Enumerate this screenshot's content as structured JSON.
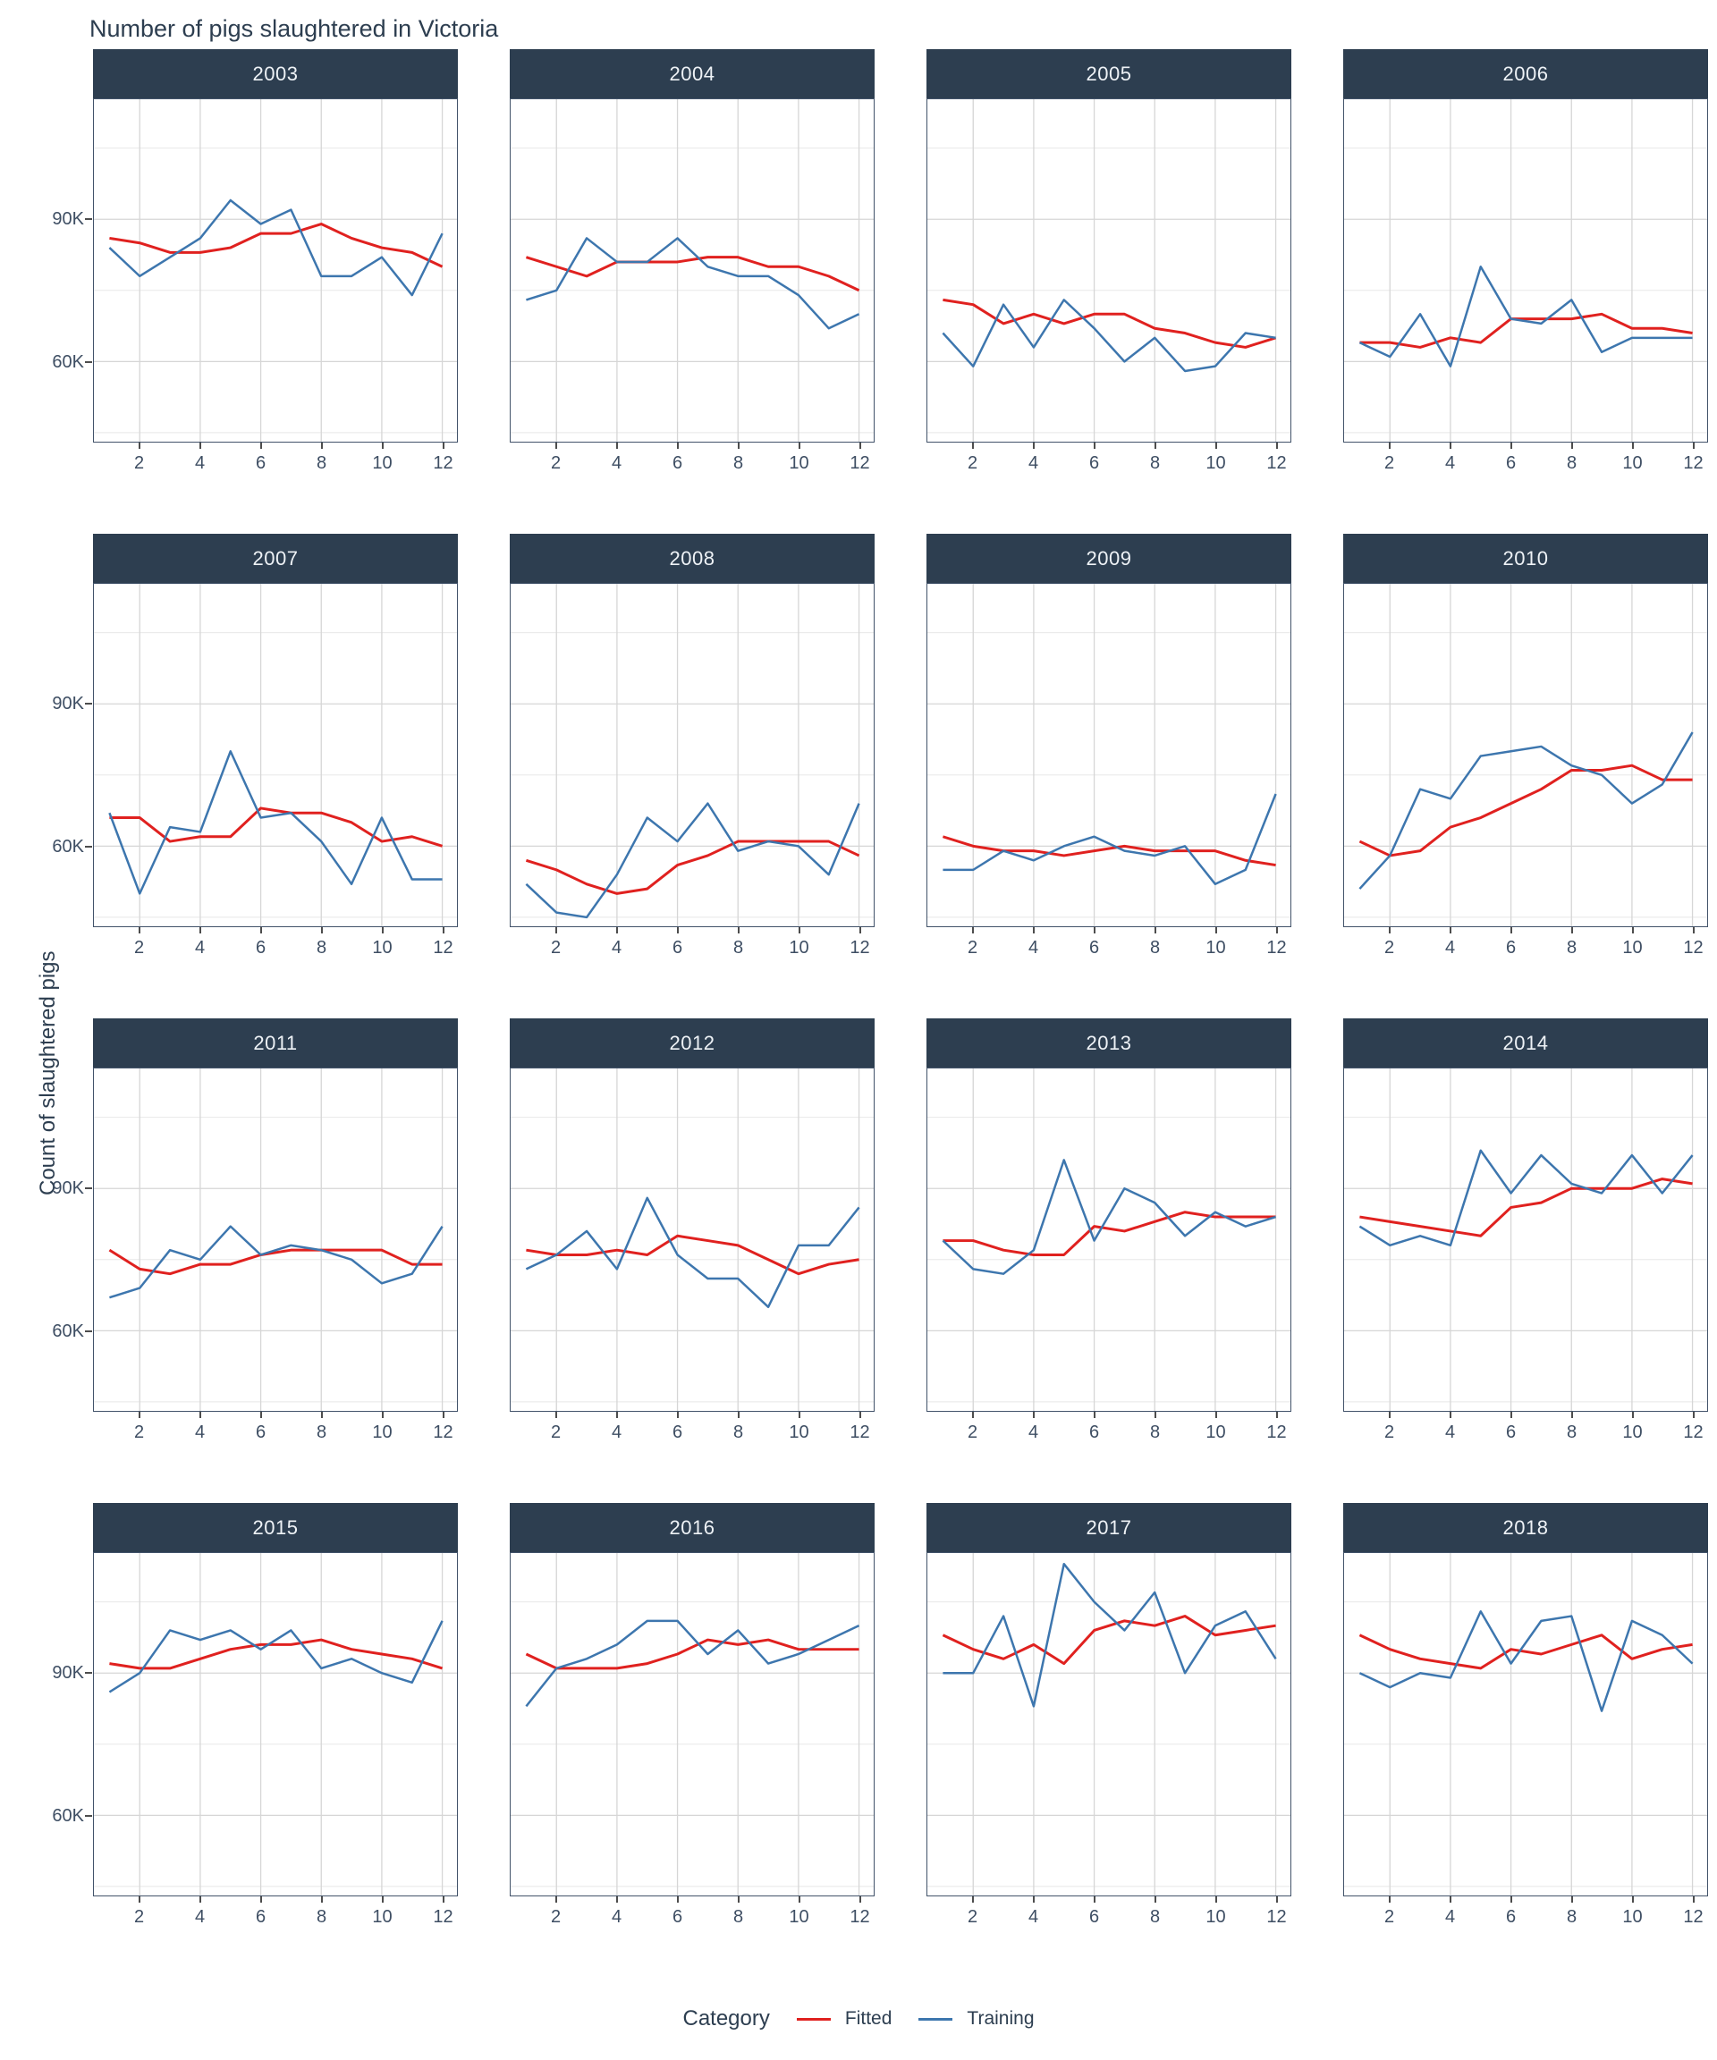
{
  "title": "Number of pigs slaughtered in Victoria",
  "ylabel": "Count of slaughtered pigs",
  "legend": {
    "title": "Category",
    "items": [
      {
        "label": "Fitted",
        "color": "#e0211f"
      },
      {
        "label": "Training",
        "color": "#3d76ae"
      }
    ]
  },
  "colors": {
    "title_text": "#2d3e50",
    "axis_text": "#3e4e63",
    "strip_bg": "#2d3e50",
    "strip_text": "#eef2f6",
    "panel_border": "#42536a",
    "grid_major": "#d6d6d6",
    "grid_minor": "#e8e8e8",
    "tick_mark": "#4d4d4d",
    "fitted": "#e0211f",
    "training": "#3d76ae"
  },
  "chart_data": {
    "type": "line",
    "title": "Number of pigs slaughtered in Victoria",
    "ylabel": "Count of slaughtered pigs",
    "xlabel": "",
    "values_in": "thousands",
    "x": [
      1,
      2,
      3,
      4,
      5,
      6,
      7,
      8,
      9,
      10,
      11,
      12
    ],
    "x_ticks": [
      2,
      4,
      6,
      8,
      10,
      12
    ],
    "y_major_ticks": [
      {
        "value": 90,
        "label": "90K"
      },
      {
        "value": 60,
        "label": "60K"
      }
    ],
    "y_minor_ticks": [
      45,
      75,
      105
    ],
    "ylim": [
      43.1,
      115.3
    ],
    "grid": true,
    "legend_position": "bottom",
    "series_names": [
      "Fitted",
      "Training"
    ],
    "facets": [
      {
        "year": "2003",
        "fitted": [
          86,
          85,
          83,
          83,
          84,
          87,
          87,
          89,
          86,
          84,
          83,
          80
        ],
        "training": [
          84,
          78,
          82,
          86,
          94,
          89,
          92,
          78,
          78,
          82,
          74,
          87
        ]
      },
      {
        "year": "2004",
        "fitted": [
          82,
          80,
          78,
          81,
          81,
          81,
          82,
          82,
          80,
          80,
          78,
          75
        ],
        "training": [
          73,
          75,
          86,
          81,
          81,
          86,
          80,
          78,
          78,
          74,
          67,
          70
        ]
      },
      {
        "year": "2005",
        "fitted": [
          73,
          72,
          68,
          70,
          68,
          70,
          70,
          67,
          66,
          64,
          63,
          65
        ],
        "training": [
          66,
          59,
          72,
          63,
          73,
          67,
          60,
          65,
          58,
          59,
          66,
          65
        ]
      },
      {
        "year": "2006",
        "fitted": [
          64,
          64,
          63,
          65,
          64,
          69,
          69,
          69,
          70,
          67,
          67,
          66
        ],
        "training": [
          64,
          61,
          70,
          59,
          80,
          69,
          68,
          73,
          62,
          65,
          65,
          65
        ]
      },
      {
        "year": "2007",
        "fitted": [
          66,
          66,
          61,
          62,
          62,
          68,
          67,
          67,
          65,
          61,
          62,
          60
        ],
        "training": [
          67,
          50,
          64,
          63,
          80,
          66,
          67,
          61,
          52,
          66,
          53,
          53
        ]
      },
      {
        "year": "2008",
        "fitted": [
          57,
          55,
          52,
          50,
          51,
          56,
          58,
          61,
          61,
          61,
          61,
          58
        ],
        "training": [
          52,
          46,
          45,
          54,
          66,
          61,
          69,
          59,
          61,
          60,
          54,
          69
        ]
      },
      {
        "year": "2009",
        "fitted": [
          62,
          60,
          59,
          59,
          58,
          59,
          60,
          59,
          59,
          59,
          57,
          56
        ],
        "training": [
          55,
          55,
          59,
          57,
          60,
          62,
          59,
          58,
          60,
          52,
          55,
          71
        ]
      },
      {
        "year": "2010",
        "fitted": [
          61,
          58,
          59,
          64,
          66,
          69,
          72,
          76,
          76,
          77,
          74,
          74
        ],
        "training": [
          51,
          58,
          72,
          70,
          79,
          80,
          81,
          77,
          75,
          69,
          73,
          84
        ]
      },
      {
        "year": "2011",
        "fitted": [
          77,
          73,
          72,
          74,
          74,
          76,
          77,
          77,
          77,
          77,
          74,
          74
        ],
        "training": [
          67,
          69,
          77,
          75,
          82,
          76,
          78,
          77,
          75,
          70,
          72,
          82
        ]
      },
      {
        "year": "2012",
        "fitted": [
          77,
          76,
          76,
          77,
          76,
          80,
          79,
          78,
          75,
          72,
          74,
          75
        ],
        "training": [
          73,
          76,
          81,
          73,
          88,
          76,
          71,
          71,
          65,
          78,
          78,
          86
        ]
      },
      {
        "year": "2013",
        "fitted": [
          79,
          79,
          77,
          76,
          76,
          82,
          81,
          83,
          85,
          84,
          84,
          84
        ],
        "training": [
          79,
          73,
          72,
          77,
          96,
          79,
          90,
          87,
          80,
          85,
          82,
          84
        ]
      },
      {
        "year": "2014",
        "fitted": [
          84,
          83,
          82,
          81,
          80,
          86,
          87,
          90,
          90,
          90,
          92,
          91
        ],
        "training": [
          82,
          78,
          80,
          78,
          98,
          89,
          97,
          91,
          89,
          97,
          89,
          97
        ]
      },
      {
        "year": "2015",
        "fitted": [
          92,
          91,
          91,
          93,
          95,
          96,
          96,
          97,
          95,
          94,
          93,
          91
        ],
        "training": [
          86,
          90,
          99,
          97,
          99,
          95,
          99,
          91,
          93,
          90,
          88,
          101
        ]
      },
      {
        "year": "2016",
        "fitted": [
          94,
          91,
          91,
          91,
          92,
          94,
          97,
          96,
          97,
          95,
          95,
          95
        ],
        "training": [
          83,
          91,
          93,
          96,
          101,
          101,
          94,
          99,
          92,
          94,
          97,
          100
        ]
      },
      {
        "year": "2017",
        "fitted": [
          98,
          95,
          93,
          96,
          92,
          99,
          101,
          100,
          102,
          98,
          99,
          100
        ],
        "training": [
          90,
          90,
          102,
          83,
          113,
          105,
          99,
          107,
          90,
          100,
          103,
          93
        ]
      },
      {
        "year": "2018",
        "fitted": [
          98,
          95,
          93,
          92,
          91,
          95,
          94,
          96,
          98,
          93,
          95,
          96
        ],
        "training": [
          90,
          87,
          90,
          89,
          103,
          92,
          101,
          102,
          82,
          101,
          98,
          92
        ]
      }
    ]
  }
}
